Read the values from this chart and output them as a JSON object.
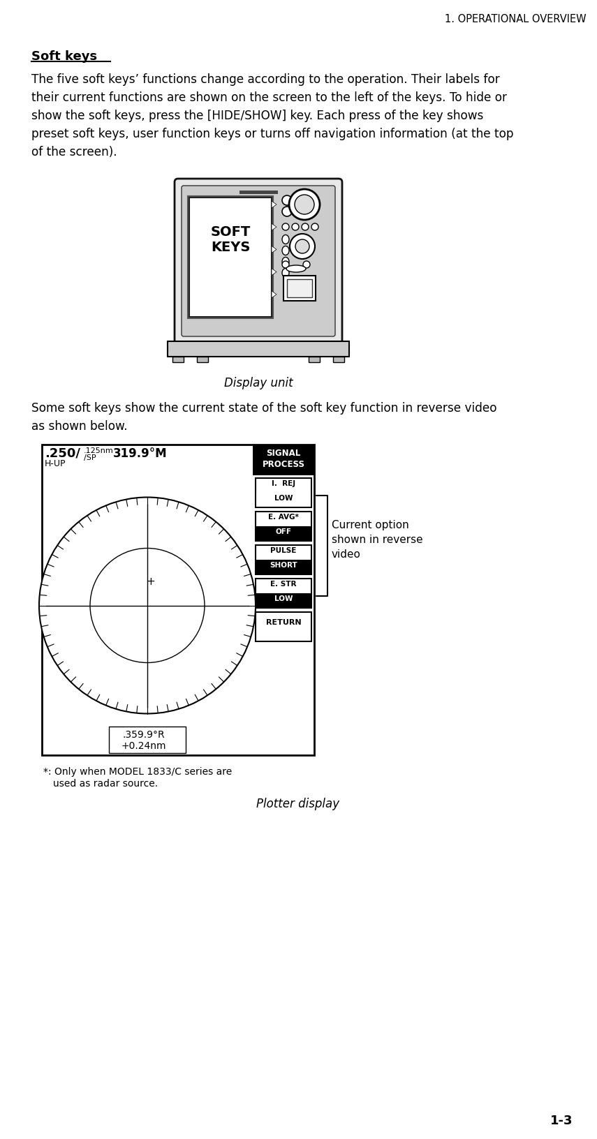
{
  "page_header": "1. OPERATIONAL OVERVIEW",
  "page_footer": "1-3",
  "section_title": "Soft keys",
  "para1_lines": [
    "The five soft keys’ functions change according to the operation. Their labels for",
    "their current functions are shown on the screen to the left of the keys. To hide or",
    "show the soft keys, press the [HIDE/SHOW] key. Each press of the key shows",
    "preset soft keys, user function keys or turns off navigation information (at the top",
    "of the screen)."
  ],
  "caption1": "Display unit",
  "para2_lines": [
    "Some soft keys show the current state of the soft key function in reverse video",
    "as shown below."
  ],
  "radar_range": ".250/",
  "radar_range_super": ".125nm",
  "radar_range_sp": "/SP",
  "radar_hup": "H-UP",
  "radar_heading": "319.9°M",
  "sk_header": "SIGNAL\nPROCESS",
  "softkeys": [
    {
      "top": "I.  REJ",
      "bot": "LOW",
      "bot_reverse": false
    },
    {
      "top": "E. AVG*",
      "bot": "OFF",
      "bot_reverse": true
    },
    {
      "top": "PULSE",
      "bot": "SHORT",
      "bot_reverse": true
    },
    {
      "top": "E. STR",
      "bot": "LOW",
      "bot_reverse": true
    },
    {
      "top": "RETURN",
      "bot": "",
      "bot_reverse": false
    }
  ],
  "radar_bearing": ".359.9°R",
  "radar_dist": "+0.24nm",
  "annotation": "Current option\nshown in reverse\nvideo",
  "footnote_line1": "*: Only when MODEL 1833/C series are",
  "footnote_line2": "   used as radar source.",
  "caption2": "Plotter display",
  "bg_color": "#ffffff",
  "text_color": "#000000"
}
